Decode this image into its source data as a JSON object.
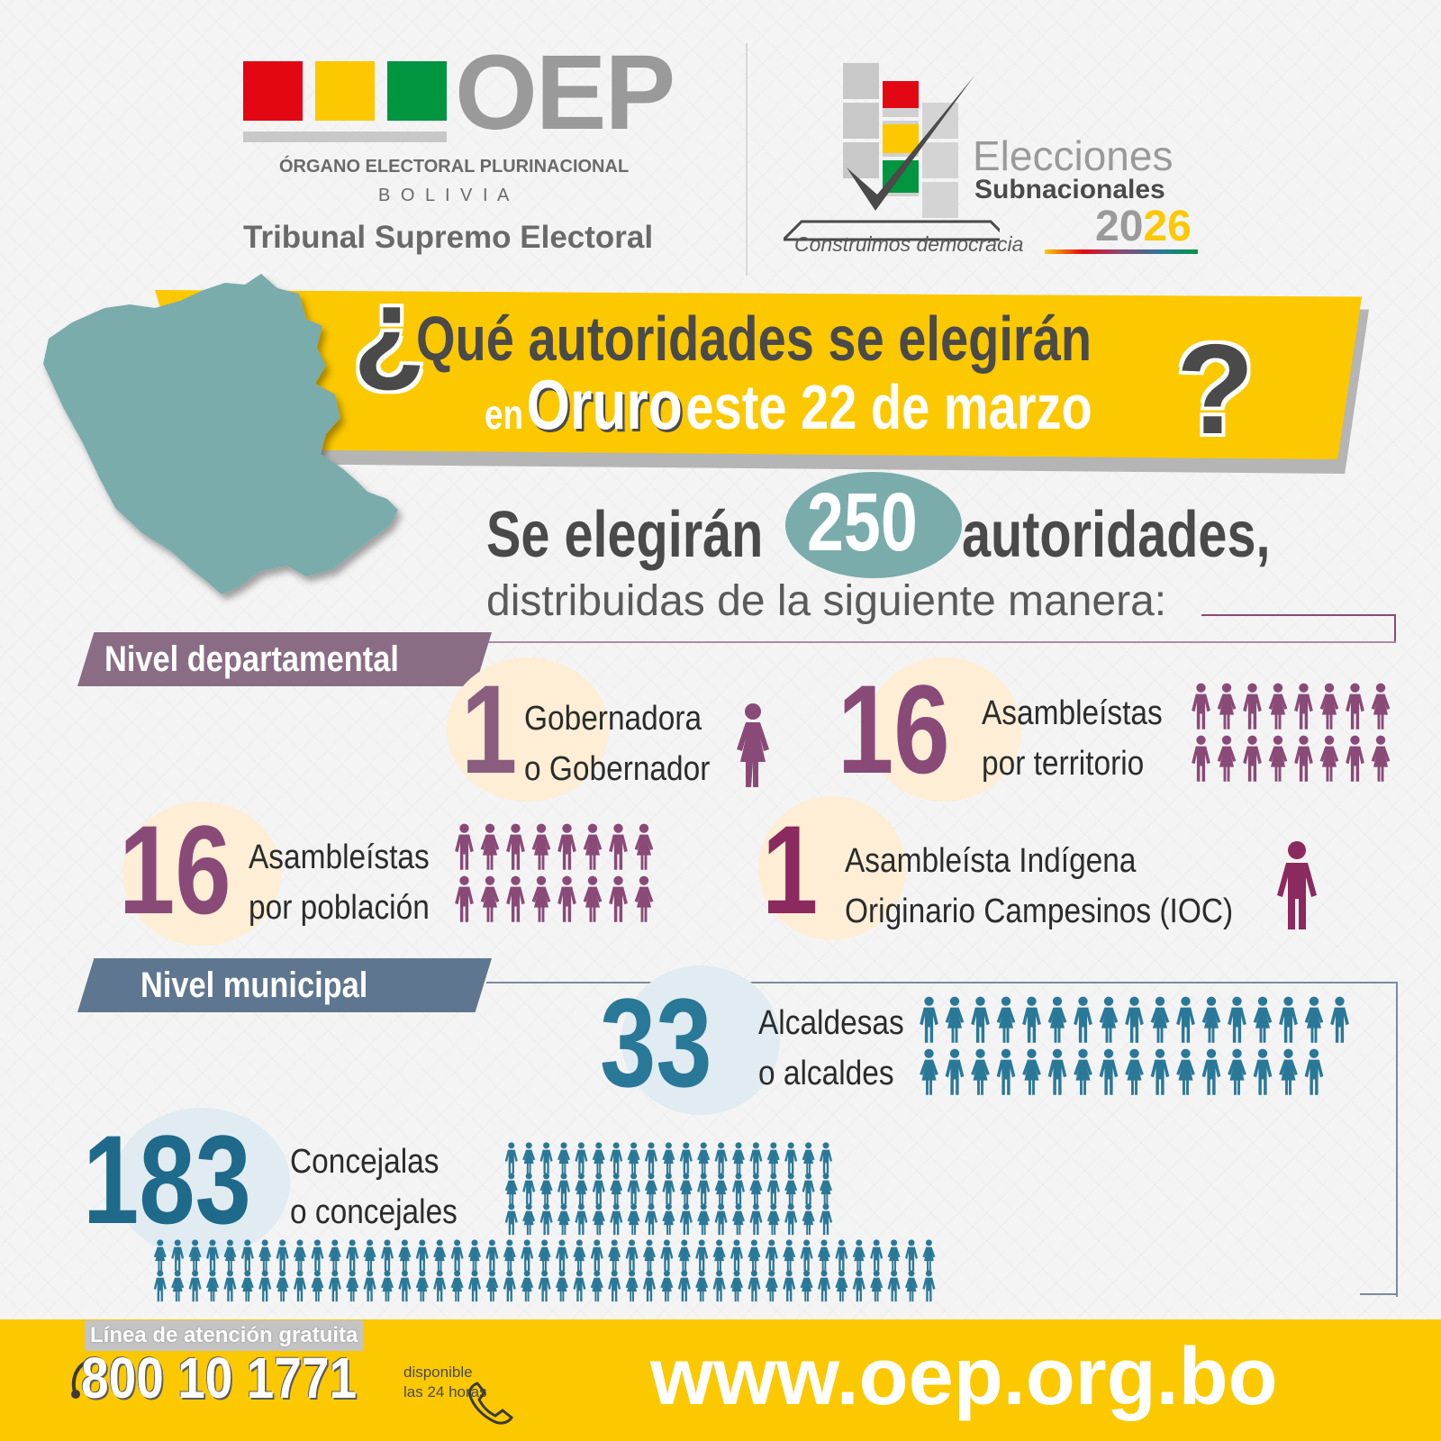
{
  "header": {
    "oep_logo": "OEP",
    "org_name": "ÓRGANO ELECTORAL PLURINACIONAL",
    "country": "B O L I V I A",
    "tribunal": "Tribunal Supremo Electoral",
    "elections_title_1": "Elecciones",
    "elections_title_2": "Subnacionales",
    "year_prefix": "20",
    "year_suffix": "26",
    "slogan": "Construimos democracia",
    "flag_colors": [
      "#e30613",
      "#fcc800",
      "#009640"
    ]
  },
  "banner": {
    "line1": "Qué autoridades se elegirán",
    "line2_en": "en",
    "line2_place": "Oruro",
    "line2_rest": "este 22 de marzo",
    "open_q": "¿",
    "close_q": "?"
  },
  "summary": {
    "pre": "Se elegirán",
    "number": "250",
    "post": "autoridades,",
    "sub": "distribuidas de la siguiente manera:"
  },
  "departamental": {
    "label": "Nivel departamental",
    "items": [
      {
        "number": "1",
        "line1": "Gobernadora",
        "line2": "o Gobernador",
        "count": 1
      },
      {
        "number": "16",
        "line1": "Asambleístas",
        "line2": "por territorio",
        "count": 16
      },
      {
        "number": "16",
        "line1": "Asambleístas",
        "line2": "por población",
        "count": 16
      },
      {
        "number": "1",
        "line1": "Asambleísta Indígena",
        "line2": "Originario Campesinos (IOC)",
        "count": 1
      }
    ]
  },
  "municipal": {
    "label": "Nivel municipal",
    "items": [
      {
        "number": "33",
        "line1": "Alcaldesas",
        "line2": "o alcaldes",
        "count": 33
      },
      {
        "number": "183",
        "line1": "Concejalas",
        "line2": "o concejales",
        "count": 183
      }
    ]
  },
  "footer": {
    "hotline_label": "Línea de atención gratuita",
    "phone": "800 10 1771",
    "avail_1": "disponible",
    "avail_2": "las 24 horas",
    "website": "www.oep.org.bo"
  },
  "colors": {
    "yellow": "#fcc800",
    "purple": "#8a4a77",
    "teal": "#2a7898",
    "map": "#7aacac",
    "grey_text": "#5a5a5a"
  }
}
